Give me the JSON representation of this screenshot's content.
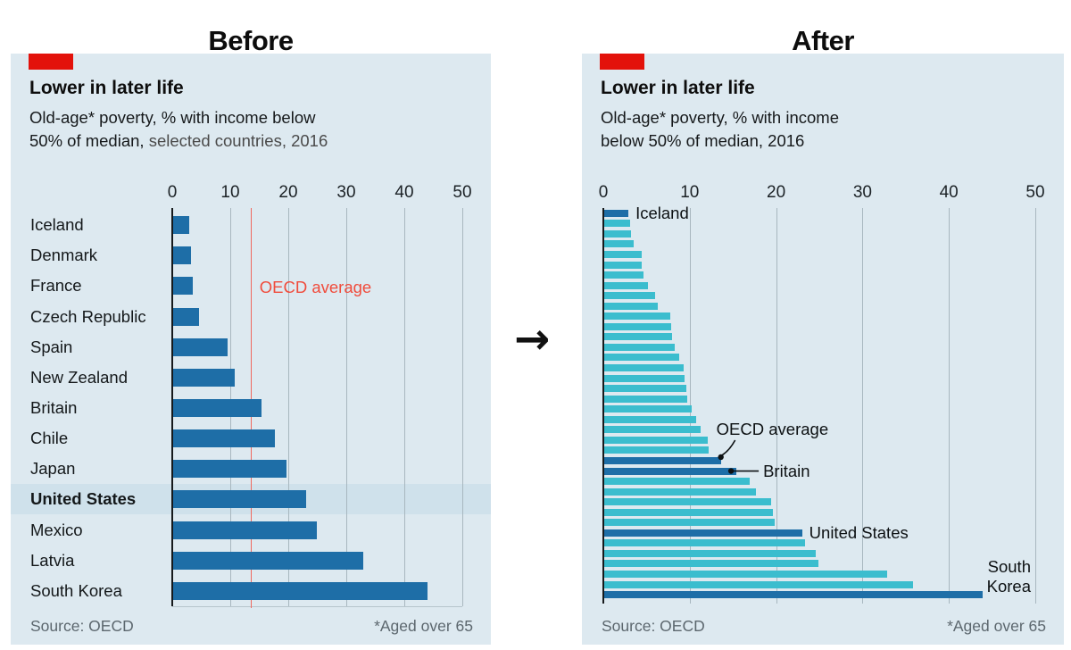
{
  "page": {
    "before_heading": "Before",
    "after_heading": "After",
    "arrow_icon": "→"
  },
  "colors": {
    "panel_bg": "#dde9f0",
    "dark_blue": "#1e6ea7",
    "cyan": "#3bbdce",
    "brand_red": "#e3120b",
    "ref_line_red": "#f0695e",
    "ref_text_red": "#f04c3c",
    "gridline": "#a8b7bf",
    "highlight_band": "#cfe1eb",
    "footer_gray": "#5c676e"
  },
  "chart_data": [
    {
      "id": "before",
      "type": "bar",
      "title": "Lower in later life",
      "subtitle_line1": "Old-age* poverty, % with income below",
      "subtitle_line2_main": "50% of median,",
      "subtitle_line2_light": " selected countries, 2016",
      "source": "Source: OECD",
      "footnote": "*Aged over 65",
      "x_ticks": [
        0,
        10,
        20,
        30,
        40,
        50
      ],
      "xlim": [
        0,
        50
      ],
      "categories": [
        "Iceland",
        "Denmark",
        "France",
        "Czech Republic",
        "Spain",
        "New Zealand",
        "Britain",
        "Chile",
        "Japan",
        "United States",
        "Mexico",
        "Latvia",
        "South Korea"
      ],
      "values": [
        2.8,
        3.0,
        3.4,
        4.5,
        9.4,
        10.6,
        15.3,
        17.6,
        19.6,
        22.9,
        24.7,
        32.7,
        43.8
      ],
      "highlighted_category": "United States",
      "reference_line": {
        "label": "OECD average",
        "value": 13.5
      }
    },
    {
      "id": "after",
      "type": "bar",
      "title": "Lower in later life",
      "subtitle_line1": "Old-age* poverty, % with income",
      "subtitle_line2": "below 50% of median, 2016",
      "source": "Source: OECD",
      "footnote": "*Aged over 65",
      "x_ticks": [
        0,
        10,
        20,
        30,
        40,
        50
      ],
      "xlim": [
        0,
        50
      ],
      "values": [
        2.8,
        3.0,
        3.1,
        3.4,
        4.3,
        4.3,
        4.5,
        5.1,
        5.9,
        6.2,
        7.6,
        7.7,
        7.9,
        8.2,
        8.7,
        9.2,
        9.3,
        9.5,
        9.6,
        10.1,
        10.6,
        11.2,
        12.0,
        12.1,
        13.5,
        15.3,
        16.8,
        17.6,
        19.3,
        19.5,
        19.7,
        22.9,
        23.2,
        24.5,
        24.8,
        32.7,
        35.7,
        43.8
      ],
      "highlights": [
        {
          "index": 0,
          "label": "Iceland",
          "style": "inline"
        },
        {
          "index": 24,
          "label": "OECD average",
          "style": "curve-dot"
        },
        {
          "index": 25,
          "label": "Britain",
          "style": "dot-line"
        },
        {
          "index": 31,
          "label": "United States",
          "style": "inline"
        },
        {
          "index": 37,
          "label": "South Korea",
          "style": "right-edge"
        }
      ]
    }
  ]
}
